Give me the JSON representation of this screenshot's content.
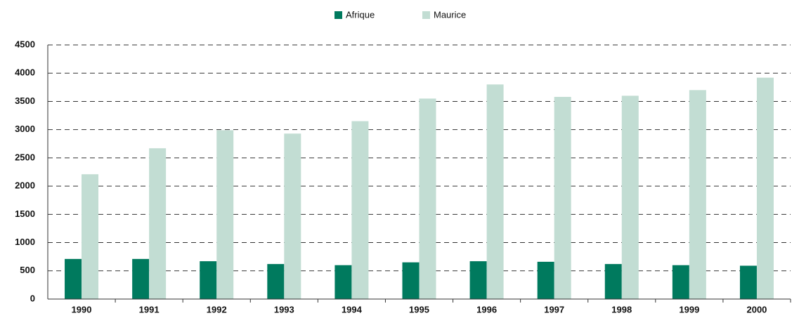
{
  "chart_data": {
    "type": "bar",
    "categories": [
      "1990",
      "1991",
      "1992",
      "1993",
      "1994",
      "1995",
      "1996",
      "1997",
      "1998",
      "1999",
      "2000"
    ],
    "series": [
      {
        "name": "Afrique",
        "color": "#007a5e",
        "values": [
          710,
          710,
          670,
          620,
          600,
          650,
          670,
          660,
          620,
          600,
          590
        ]
      },
      {
        "name": "Maurice",
        "color": "#c2ddd3",
        "values": [
          2210,
          2670,
          2990,
          2930,
          3150,
          3550,
          3800,
          3580,
          3600,
          3700,
          3920
        ]
      }
    ],
    "ylim": [
      0,
      4500
    ],
    "yticks": [
      0,
      500,
      1000,
      1500,
      2000,
      2500,
      3000,
      3500,
      4000,
      4500
    ],
    "grid": true,
    "legend": "top"
  }
}
